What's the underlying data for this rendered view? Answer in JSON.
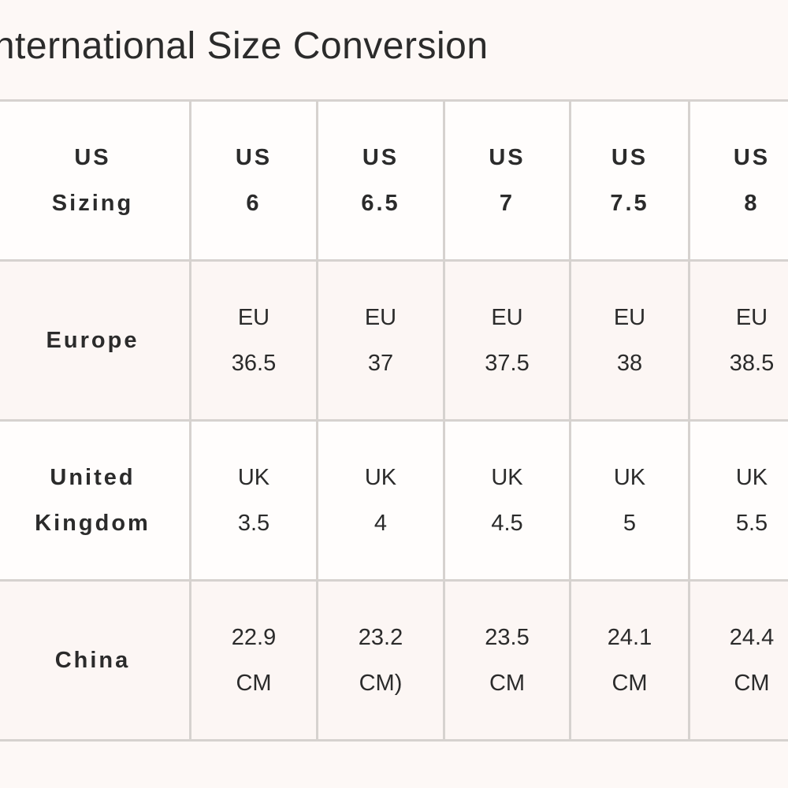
{
  "title": "International Size Conversion",
  "rows": [
    {
      "label": [
        "US",
        "Sizing"
      ],
      "cells": [
        [
          "US",
          "6"
        ],
        [
          "US",
          "6.5"
        ],
        [
          "US",
          "7"
        ],
        [
          "US",
          "7.5"
        ],
        [
          "US",
          "8"
        ]
      ]
    },
    {
      "label": [
        "Europe"
      ],
      "cells": [
        [
          "EU",
          "36.5"
        ],
        [
          "EU",
          "37"
        ],
        [
          "EU",
          "37.5"
        ],
        [
          "EU",
          "38"
        ],
        [
          "EU",
          "38.5"
        ]
      ]
    },
    {
      "label": [
        "United",
        "Kingdom"
      ],
      "cells": [
        [
          "UK",
          "3.5"
        ],
        [
          "UK",
          "4"
        ],
        [
          "UK",
          "4.5"
        ],
        [
          "UK",
          "5"
        ],
        [
          "UK",
          "5.5"
        ]
      ]
    },
    {
      "label": [
        "China"
      ],
      "cells": [
        [
          "22.9",
          "CM"
        ],
        [
          "23.2",
          "CM)"
        ],
        [
          "23.5",
          "CM"
        ],
        [
          "24.1",
          "CM"
        ],
        [
          "24.4",
          "CM"
        ]
      ]
    }
  ],
  "colors": {
    "background": "#fdf8f6",
    "border": "#d6d2cf",
    "text": "#2b2b2b"
  }
}
